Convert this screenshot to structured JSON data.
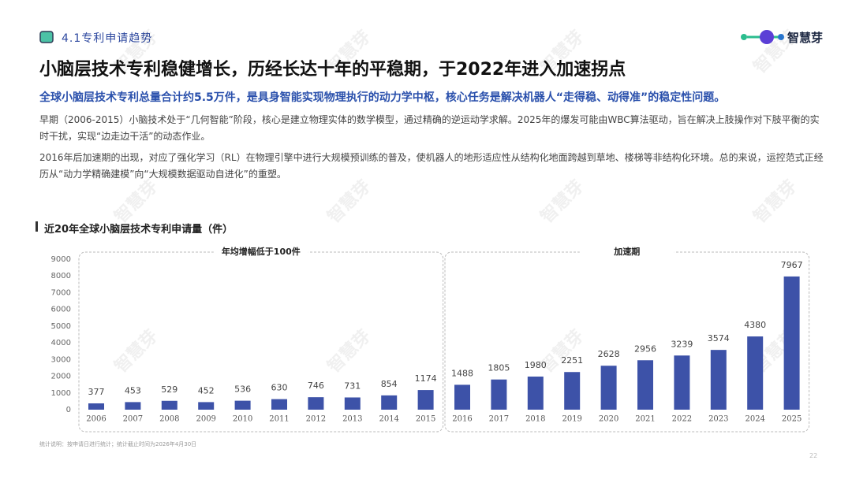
{
  "header": {
    "section": "4.1专利申请趋势",
    "logo": "智慧芽"
  },
  "title": "小脑层技术专利稳健增长，历经长达十年的平稳期，于2022年进入加速拐点",
  "highlight": "全球小脑层技术专利总量合计约5.5万件，是具身智能实现物理执行的动力学中枢，核心任务是解决机器人“走得稳、动得准”的稳定性问题。",
  "paragraphs": [
    "早期（2006-2015）小脑技术处于“几何智能”阶段，核心是建立物理实体的数学模型，通过精确的逆运动学求解。2025年的爆发可能由WBC算法驱动，旨在解决上肢操作对下肢平衡的实时干扰，实现“边走边干活”的动态作业。",
    "2016年后加速期的出现，对应了强化学习（RL）在物理引擎中进行大规模预训练的普及，使机器人的地形适应性从结构化地面跨越到草地、楼梯等非结构化环境。总的来说，运控范式正经历从“动力学精确建模”向“大规模数据驱动自进化”的重塑。"
  ],
  "chart_data": {
    "type": "bar",
    "title": "近20年全球小脑层技术专利申请量（件）",
    "annotations": [
      "年均增幅低于100件",
      "加速期"
    ],
    "categories": [
      "2006",
      "2007",
      "2008",
      "2009",
      "2010",
      "2011",
      "2012",
      "2013",
      "2014",
      "2015",
      "2016",
      "2017",
      "2018",
      "2019",
      "2020",
      "2021",
      "2022",
      "2023",
      "2024",
      "2025"
    ],
    "values": [
      377,
      453,
      529,
      452,
      536,
      630,
      746,
      731,
      854,
      1174,
      1488,
      1805,
      1980,
      2251,
      2628,
      2956,
      3239,
      3574,
      4380,
      7967
    ],
    "color": "#3d52a8",
    "ylim": [
      0,
      9000
    ],
    "yticks": [
      0,
      1000,
      2000,
      3000,
      4000,
      5000,
      6000,
      7000,
      8000,
      9000
    ],
    "grid": false
  },
  "footnote": "统计说明：按申请日进行统计；统计截止时间为2026年4月30日",
  "page_number": "22"
}
